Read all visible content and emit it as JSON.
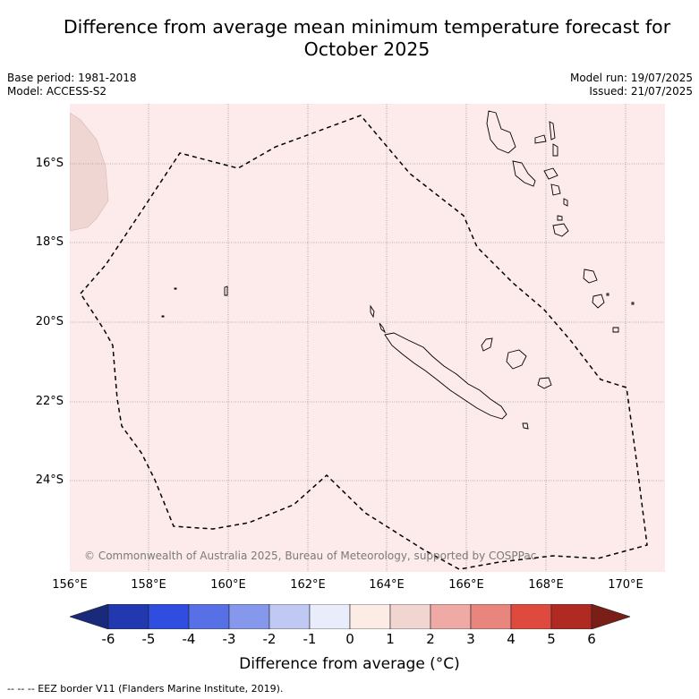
{
  "title_line1": "Difference from average mean minimum temperature forecast for",
  "title_line2": "October 2025",
  "base_period": "Base period: 1981-2018",
  "model": "Model: ACCESS-S2",
  "model_run": "Model run: 19/07/2025",
  "issued": "Issued: 21/07/2025",
  "credit": "© Commonwealth of Australia 2025, Bureau of Meteorology, supported by COSPPac",
  "lat_labels": [
    "16°S",
    "18°S",
    "20°S",
    "22°S",
    "24°S"
  ],
  "lon_labels": [
    "156°E",
    "158°E",
    "160°E",
    "162°E",
    "164°E",
    "166°E",
    "168°E",
    "170°E"
  ],
  "colorbar": {
    "ticks": [
      "-6",
      "-5",
      "-4",
      "-3",
      "-2",
      "-1",
      "0",
      "1",
      "2",
      "3",
      "4",
      "5",
      "6"
    ],
    "colors": [
      "#1a2a7a",
      "#2238b0",
      "#2f4ee0",
      "#5870e6",
      "#8598ec",
      "#c0c8f4",
      "#e9ecfa",
      "#fdebe6",
      "#f1d5d0",
      "#efaaa5",
      "#e8867e",
      "#de4a3e",
      "#b02a22",
      "#7a1e18"
    ],
    "label": "Difference from average (°C)"
  },
  "footnote": "--  --  -- EEZ border V11 (Flanders Marine Institute, 2019).",
  "map_colors": {
    "background": "#fcebea",
    "warm_patch": "#f0d6d3",
    "grid": "#777777"
  }
}
